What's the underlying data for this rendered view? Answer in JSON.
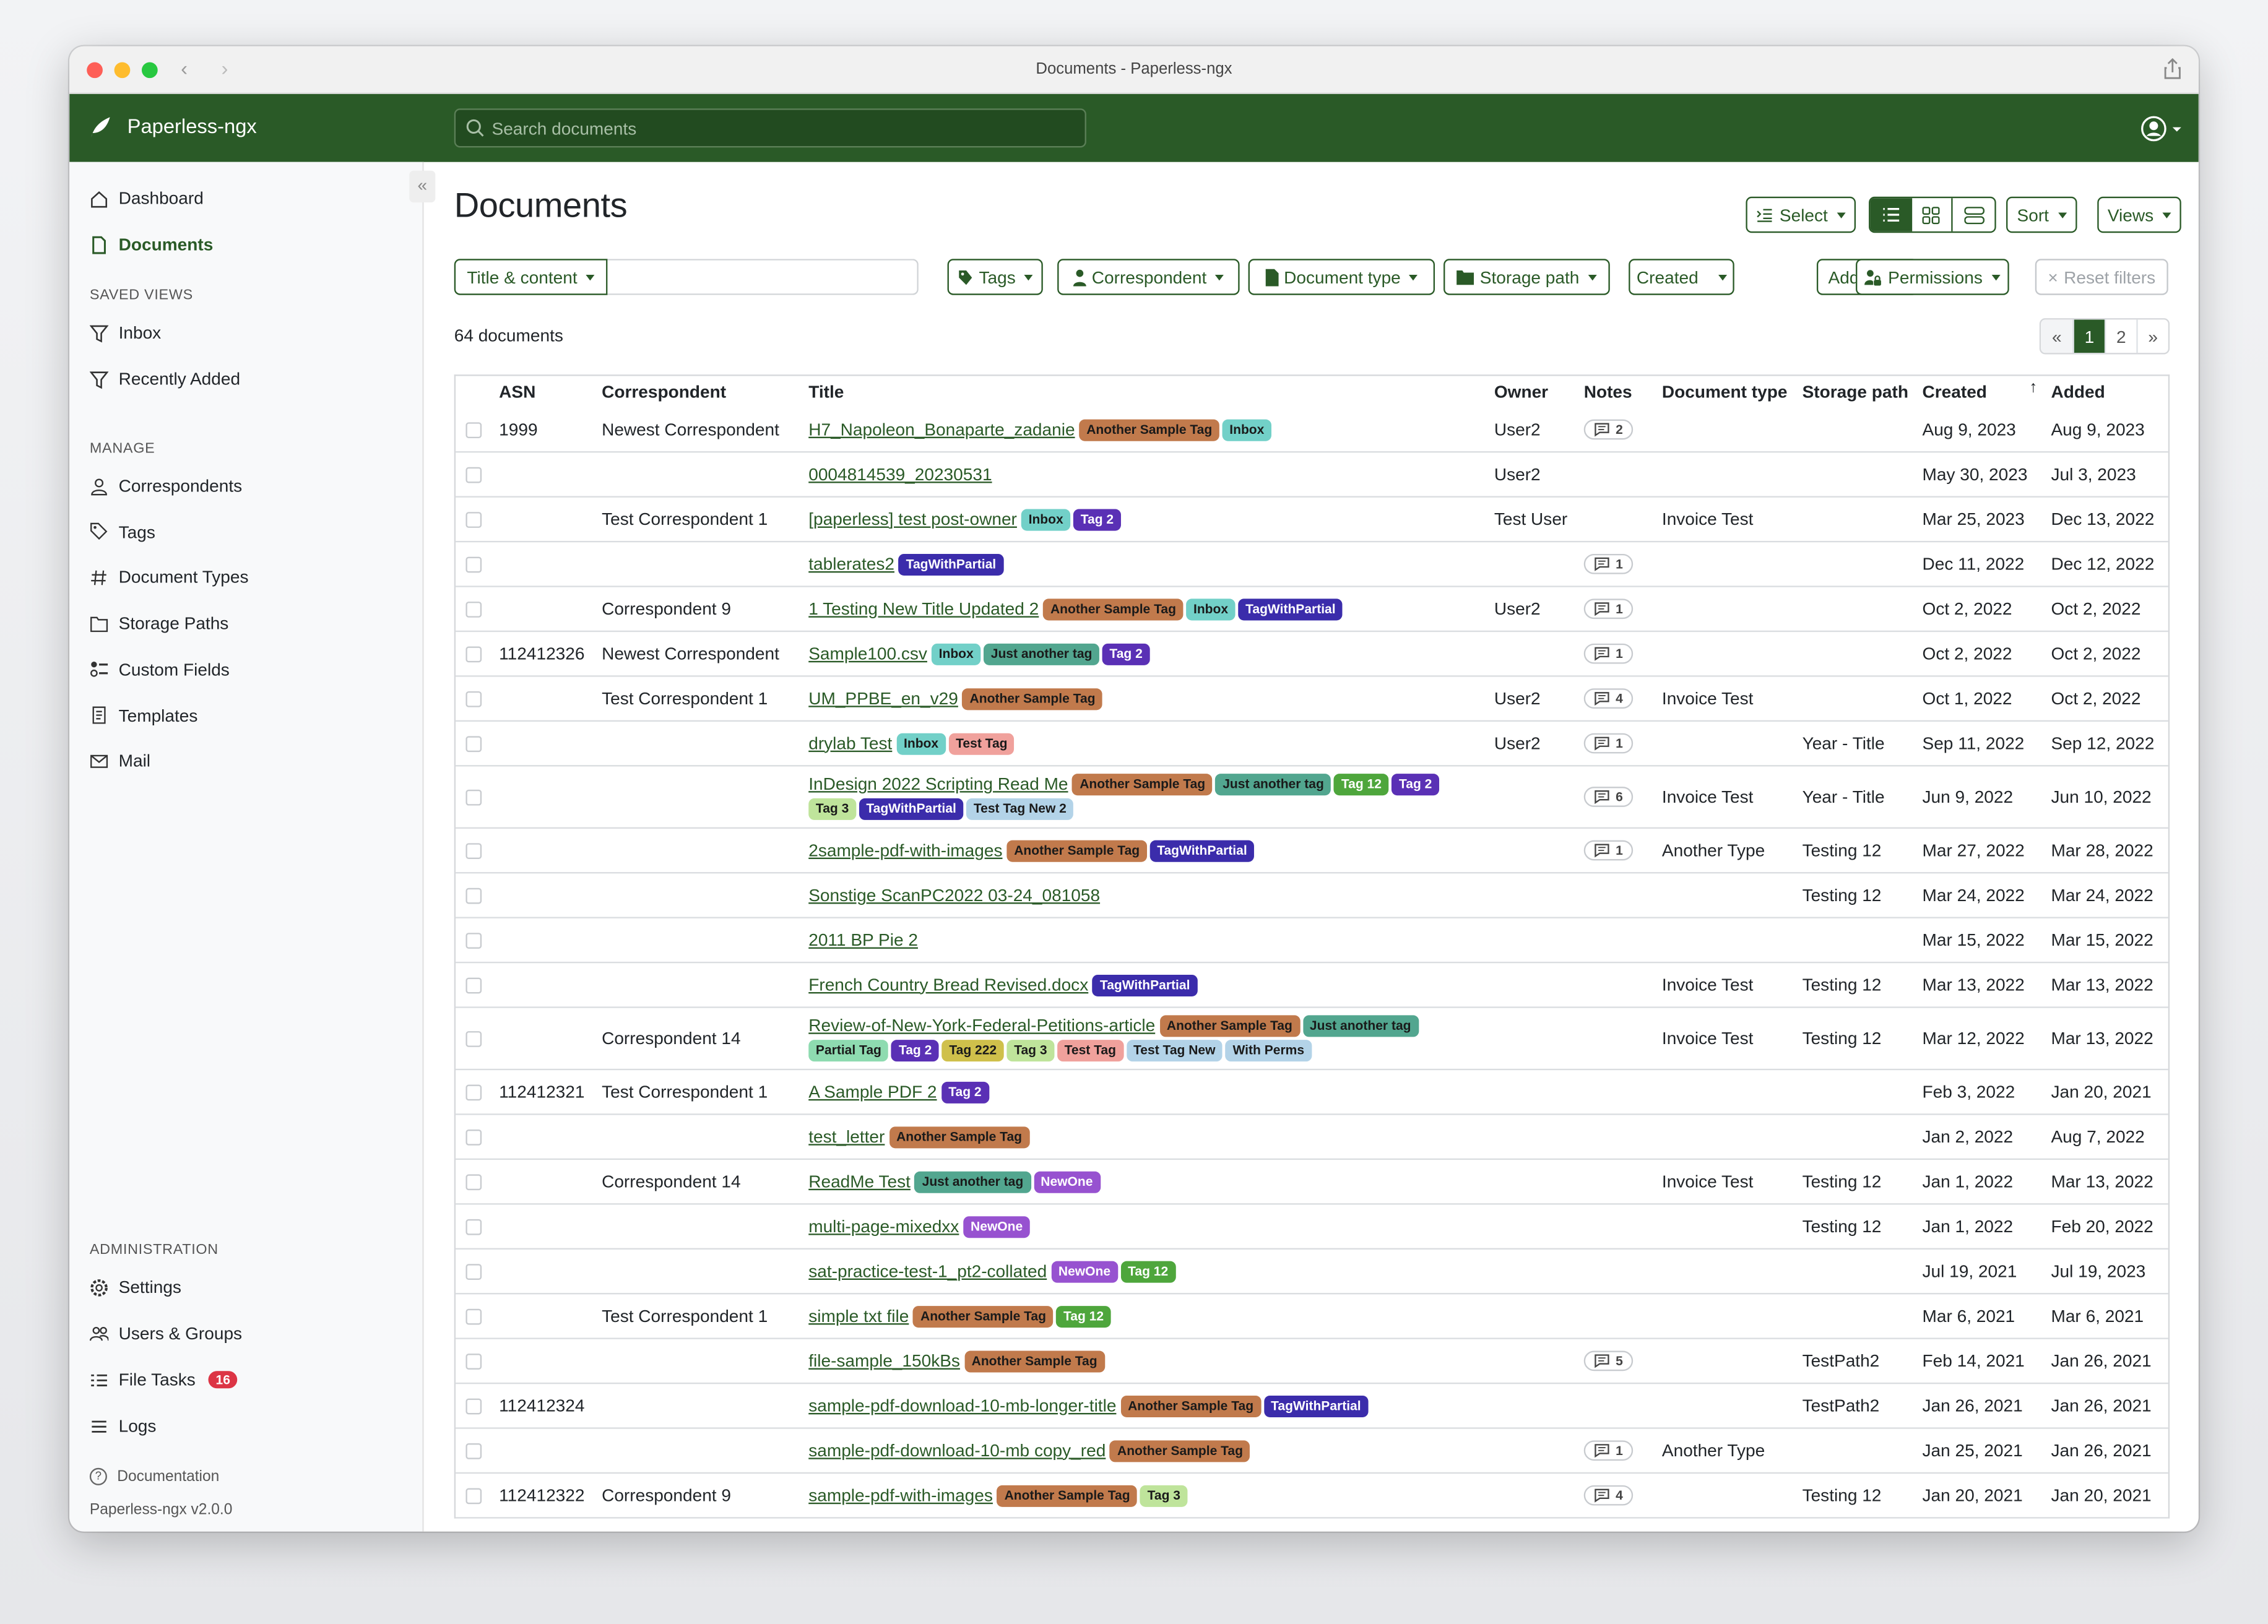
{
  "window": {
    "title": "Documents - Paperless-ngx"
  },
  "navbar": {
    "brand": "Paperless-ngx",
    "search_placeholder": "Search documents",
    "brand_color": "#2a5a27"
  },
  "sidebar": {
    "items": [
      {
        "label": "Dashboard",
        "icon": "house-icon"
      },
      {
        "label": "Documents",
        "icon": "file-icon",
        "active": true
      }
    ],
    "saved_views_heading": "SAVED VIEWS",
    "saved_views": [
      {
        "label": "Inbox",
        "icon": "funnel-icon"
      },
      {
        "label": "Recently Added",
        "icon": "funnel-icon"
      }
    ],
    "manage_heading": "MANAGE",
    "manage": [
      {
        "label": "Correspondents",
        "icon": "person-icon"
      },
      {
        "label": "Tags",
        "icon": "tags-icon"
      },
      {
        "label": "Document Types",
        "icon": "hash-icon"
      },
      {
        "label": "Storage Paths",
        "icon": "folder-icon"
      },
      {
        "label": "Custom Fields",
        "icon": "ui-radios-icon"
      },
      {
        "label": "Templates",
        "icon": "file-text-icon"
      },
      {
        "label": "Mail",
        "icon": "envelope-icon"
      }
    ],
    "admin_heading": "ADMINISTRATION",
    "admin": [
      {
        "label": "Settings",
        "icon": "gear-icon"
      },
      {
        "label": "Users & Groups",
        "icon": "people-icon"
      },
      {
        "label": "File Tasks",
        "icon": "list-task-icon",
        "badge": "16"
      },
      {
        "label": "Logs",
        "icon": "list-icon"
      }
    ],
    "documentation": "Documentation",
    "version": "Paperless-ngx v2.0.0"
  },
  "main": {
    "title": "Documents",
    "toolbar": {
      "select": "Select",
      "sort": "Sort",
      "views": "Views",
      "view_mode": "details"
    },
    "filters": {
      "text_filter": "Title & content",
      "text_value": "",
      "tags": "Tags",
      "correspondent": "Correspondent",
      "document_type": "Document type",
      "storage_path": "Storage path",
      "created": "Created",
      "added": "Added",
      "permissions": "Permissions",
      "reset": "Reset filters"
    },
    "count": "64 documents",
    "pagination": {
      "prev": "«",
      "pages": [
        "1",
        "2"
      ],
      "current": "1",
      "next": "»"
    }
  },
  "table": {
    "columns": [
      "ASN",
      "Correspondent",
      "Title",
      "Owner",
      "Notes",
      "Document type",
      "Storage path",
      "Created",
      "Added"
    ],
    "sort_column": "Added",
    "tags": {
      "Another Sample Tag": {
        "bg": "#c17a4c",
        "fg": "#1a1a1a"
      },
      "Inbox": {
        "bg": "#72d0c8",
        "fg": "#1a1a1a"
      },
      "Tag 2": {
        "bg": "#5a30b5",
        "fg": "#ffffff"
      },
      "TagWithPartial": {
        "bg": "#3b2cab",
        "fg": "#ffffff"
      },
      "Just another tag": {
        "bg": "#52a68f",
        "fg": "#1a1a1a"
      },
      "Test Tag": {
        "bg": "#f0a19c",
        "fg": "#1a1a1a"
      },
      "Tag 12": {
        "bg": "#4ea63c",
        "fg": "#ffffff"
      },
      "Tag 3": {
        "bg": "#bfe49b",
        "fg": "#1a1a1a"
      },
      "Test Tag New 2": {
        "bg": "#b3d3e8",
        "fg": "#1a1a1a"
      },
      "Partial Tag": {
        "bg": "#8edbb0",
        "fg": "#1a1a1a"
      },
      "Tag 222": {
        "bg": "#cfc04b",
        "fg": "#1a1a1a"
      },
      "Test Tag New": {
        "bg": "#b3d3e8",
        "fg": "#1a1a1a"
      },
      "With Perms": {
        "bg": "#b3d3e8",
        "fg": "#1a1a1a"
      },
      "NewOne": {
        "bg": "#9752d0",
        "fg": "#ffffff"
      }
    },
    "rows": [
      {
        "asn": "1999",
        "correspondent": "Newest Correspondent",
        "title": "H7_Napoleon_Bonaparte_zadanie",
        "tags": [
          "Another Sample Tag",
          "Inbox"
        ],
        "owner": "User2",
        "notes": "2",
        "doctype": "",
        "storage": "",
        "created": "Aug 9, 2023",
        "added": "Aug 9, 2023"
      },
      {
        "asn": "",
        "correspondent": "",
        "title": "0004814539_20230531",
        "tags": [],
        "owner": "User2",
        "notes": "",
        "doctype": "",
        "storage": "",
        "created": "May 30, 2023",
        "added": "Jul 3, 2023"
      },
      {
        "asn": "",
        "correspondent": "Test Correspondent 1",
        "title": "[paperless] test post-owner",
        "tags": [
          "Inbox",
          "Tag 2"
        ],
        "owner": "Test User",
        "notes": "",
        "doctype": "Invoice Test",
        "storage": "",
        "created": "Mar 25, 2023",
        "added": "Dec 13, 2022"
      },
      {
        "asn": "",
        "correspondent": "",
        "title": "tablerates2",
        "tags": [
          "TagWithPartial"
        ],
        "owner": "",
        "notes": "1",
        "doctype": "",
        "storage": "",
        "created": "Dec 11, 2022",
        "added": "Dec 12, 2022"
      },
      {
        "asn": "",
        "correspondent": "Correspondent 9",
        "title": "1 Testing New Title Updated 2",
        "tags": [
          "Another Sample Tag",
          "Inbox",
          "TagWithPartial"
        ],
        "owner": "User2",
        "notes": "1",
        "doctype": "",
        "storage": "",
        "created": "Oct 2, 2022",
        "added": "Oct 2, 2022"
      },
      {
        "asn": "112412326",
        "correspondent": "Newest Correspondent",
        "title": "Sample100.csv",
        "tags": [
          "Inbox",
          "Just another tag",
          "Tag 2"
        ],
        "owner": "",
        "notes": "1",
        "doctype": "",
        "storage": "",
        "created": "Oct 2, 2022",
        "added": "Oct 2, 2022"
      },
      {
        "asn": "",
        "correspondent": "Test Correspondent 1",
        "title": "UM_PPBE_en_v29",
        "tags": [
          "Another Sample Tag"
        ],
        "owner": "User2",
        "notes": "4",
        "doctype": "Invoice Test",
        "storage": "",
        "created": "Oct 1, 2022",
        "added": "Oct 2, 2022"
      },
      {
        "asn": "",
        "correspondent": "",
        "title": "drylab Test",
        "tags": [
          "Inbox",
          "Test Tag"
        ],
        "owner": "User2",
        "notes": "1",
        "doctype": "",
        "storage": "Year - Title",
        "created": "Sep 11, 2022",
        "added": "Sep 12, 2022"
      },
      {
        "asn": "",
        "correspondent": "",
        "title": "InDesign 2022 Scripting Read Me",
        "tags": [
          "Another Sample Tag",
          "Just another tag",
          "Tag 12",
          "Tag 2",
          "Tag 3",
          "TagWithPartial",
          "Test Tag New 2"
        ],
        "owner": "",
        "notes": "6",
        "doctype": "Invoice Test",
        "storage": "Year - Title",
        "created": "Jun 9, 2022",
        "added": "Jun 10, 2022"
      },
      {
        "asn": "",
        "correspondent": "",
        "title": "2sample-pdf-with-images",
        "tags": [
          "Another Sample Tag",
          "TagWithPartial"
        ],
        "owner": "",
        "notes": "1",
        "doctype": "Another Type",
        "storage": "Testing 12",
        "created": "Mar 27, 2022",
        "added": "Mar 28, 2022"
      },
      {
        "asn": "",
        "correspondent": "",
        "title": "Sonstige ScanPC2022 03-24_081058",
        "tags": [],
        "owner": "",
        "notes": "",
        "doctype": "",
        "storage": "Testing 12",
        "created": "Mar 24, 2022",
        "added": "Mar 24, 2022"
      },
      {
        "asn": "",
        "correspondent": "",
        "title": "2011 BP Pie 2",
        "tags": [],
        "owner": "",
        "notes": "",
        "doctype": "",
        "storage": "",
        "created": "Mar 15, 2022",
        "added": "Mar 15, 2022"
      },
      {
        "asn": "",
        "correspondent": "",
        "title": "French Country Bread Revised.docx",
        "tags": [
          "TagWithPartial"
        ],
        "owner": "",
        "notes": "",
        "doctype": "Invoice Test",
        "storage": "Testing 12",
        "created": "Mar 13, 2022",
        "added": "Mar 13, 2022"
      },
      {
        "asn": "",
        "correspondent": "Correspondent 14",
        "title": "Review-of-New-York-Federal-Petitions-article",
        "tags": [
          "Another Sample Tag",
          "Just another tag",
          "Partial Tag",
          "Tag 2",
          "Tag 222",
          "Tag 3",
          "Test Tag",
          "Test Tag New",
          "With Perms"
        ],
        "owner": "",
        "notes": "",
        "doctype": "Invoice Test",
        "storage": "Testing 12",
        "created": "Mar 12, 2022",
        "added": "Mar 13, 2022"
      },
      {
        "asn": "112412321",
        "correspondent": "Test Correspondent 1",
        "title": "A Sample PDF 2",
        "tags": [
          "Tag 2"
        ],
        "owner": "",
        "notes": "",
        "doctype": "",
        "storage": "",
        "created": "Feb 3, 2022",
        "added": "Jan 20, 2021"
      },
      {
        "asn": "",
        "correspondent": "",
        "title": "test_letter",
        "tags": [
          "Another Sample Tag"
        ],
        "owner": "",
        "notes": "",
        "doctype": "",
        "storage": "",
        "created": "Jan 2, 2022",
        "added": "Aug 7, 2022"
      },
      {
        "asn": "",
        "correspondent": "Correspondent 14",
        "title": "ReadMe Test",
        "tags": [
          "Just another tag",
          "NewOne"
        ],
        "owner": "",
        "notes": "",
        "doctype": "Invoice Test",
        "storage": "Testing 12",
        "created": "Jan 1, 2022",
        "added": "Mar 13, 2022"
      },
      {
        "asn": "",
        "correspondent": "",
        "title": "multi-page-mixedxx",
        "tags": [
          "NewOne"
        ],
        "owner": "",
        "notes": "",
        "doctype": "",
        "storage": "Testing 12",
        "created": "Jan 1, 2022",
        "added": "Feb 20, 2022"
      },
      {
        "asn": "",
        "correspondent": "",
        "title": "sat-practice-test-1_pt2-collated",
        "tags": [
          "NewOne",
          "Tag 12"
        ],
        "owner": "",
        "notes": "",
        "doctype": "",
        "storage": "",
        "created": "Jul 19, 2021",
        "added": "Jul 19, 2023"
      },
      {
        "asn": "",
        "correspondent": "Test Correspondent 1",
        "title": "simple txt file",
        "tags": [
          "Another Sample Tag",
          "Tag 12"
        ],
        "owner": "",
        "notes": "",
        "doctype": "",
        "storage": "",
        "created": "Mar 6, 2021",
        "added": "Mar 6, 2021"
      },
      {
        "asn": "",
        "correspondent": "",
        "title": "file-sample_150kBs",
        "tags": [
          "Another Sample Tag"
        ],
        "owner": "",
        "notes": "5",
        "doctype": "",
        "storage": "TestPath2",
        "created": "Feb 14, 2021",
        "added": "Jan 26, 2021"
      },
      {
        "asn": "112412324",
        "correspondent": "",
        "title": "sample-pdf-download-10-mb-longer-title",
        "tags": [
          "Another Sample Tag",
          "TagWithPartial"
        ],
        "owner": "",
        "notes": "",
        "doctype": "",
        "storage": "TestPath2",
        "created": "Jan 26, 2021",
        "added": "Jan 26, 2021"
      },
      {
        "asn": "",
        "correspondent": "",
        "title": "sample-pdf-download-10-mb copy_red",
        "tags": [
          "Another Sample Tag"
        ],
        "owner": "",
        "notes": "1",
        "doctype": "Another Type",
        "storage": "",
        "created": "Jan 25, 2021",
        "added": "Jan 26, 2021"
      },
      {
        "asn": "112412322",
        "correspondent": "Correspondent 9",
        "title": "sample-pdf-with-images",
        "tags": [
          "Another Sample Tag",
          "Tag 3"
        ],
        "owner": "",
        "notes": "4",
        "doctype": "",
        "storage": "Testing 12",
        "created": "Jan 20, 2021",
        "added": "Jan 20, 2021"
      }
    ]
  }
}
